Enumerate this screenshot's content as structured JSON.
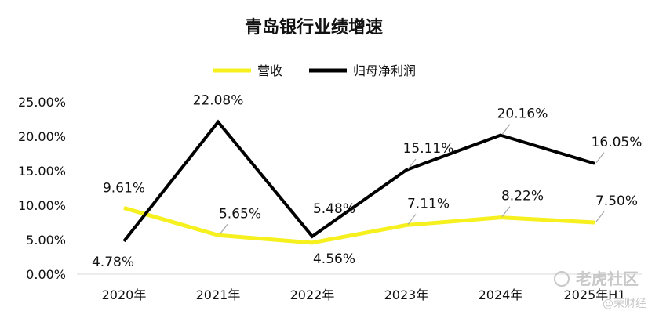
{
  "chart_data": {
    "type": "line",
    "title": "青岛银行业绩增速",
    "categories": [
      "2020年",
      "2021年",
      "2022年",
      "2023年",
      "2024年",
      "2025年H1"
    ],
    "series": [
      {
        "name": "营收",
        "color": "#f5f01e",
        "values": [
          9.61,
          5.65,
          4.56,
          7.11,
          8.22,
          7.5
        ],
        "labels": [
          "9.61%",
          "5.65%",
          "4.56%",
          "7.11%",
          "8.22%",
          "7.50%"
        ]
      },
      {
        "name": "归母净利润",
        "color": "#000000",
        "values": [
          4.78,
          22.08,
          5.48,
          15.11,
          20.16,
          16.05
        ],
        "labels": [
          "4.78%",
          "22.08%",
          "5.48%",
          "15.11%",
          "20.16%",
          "16.05%"
        ]
      }
    ],
    "y_ticks": [
      "0.00%",
      "5.00%",
      "10.00%",
      "15.00%",
      "20.00%",
      "25.00%"
    ],
    "ylim": [
      0,
      25
    ],
    "grid": false,
    "legend_position": "top-center"
  },
  "watermark": {
    "main": "老虎社区",
    "sub": "@荣财经"
  }
}
